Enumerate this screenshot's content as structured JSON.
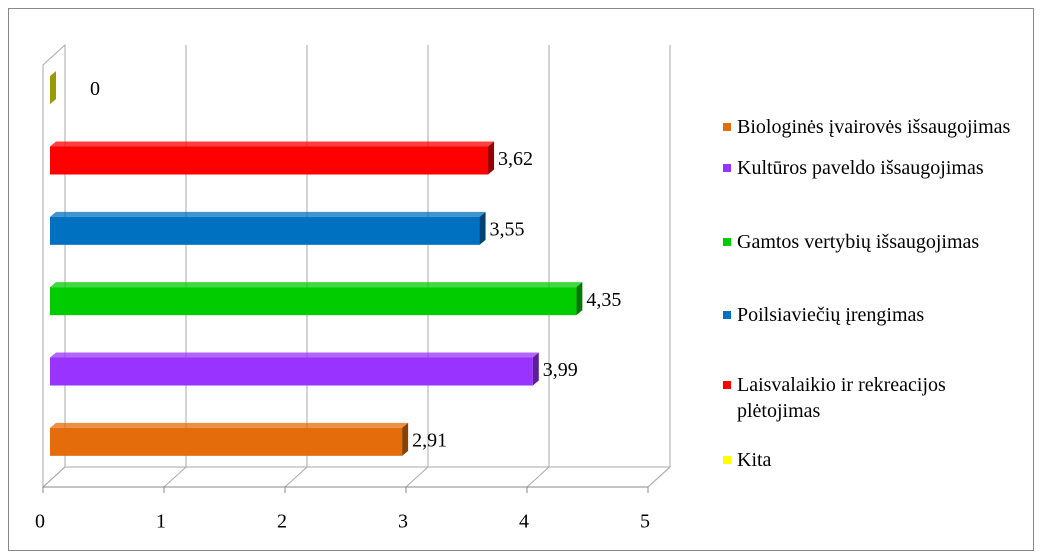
{
  "chart_data": {
    "type": "bar",
    "orientation": "horizontal",
    "categories": [
      "Biologinės įvairovės išsaugojimas",
      "Kultūros paveldo išsaugojimas",
      "Gamtos vertybių išsaugojimas",
      "Poilsiaviečių įrengimas",
      "Laisvalaikio ir rekreacijos plėtojimas",
      "Kita"
    ],
    "values": [
      2.91,
      3.99,
      4.35,
      3.55,
      3.62,
      0
    ],
    "value_labels": [
      "2,91",
      "3,99",
      "4,35",
      "3,55",
      "3,62",
      "0"
    ],
    "colors": [
      "#e46c0a",
      "#9933ff",
      "#00cc00",
      "#0070c0",
      "#ff0000",
      "#ffff00"
    ],
    "xlim": [
      0,
      5
    ],
    "xticks": [
      0,
      1,
      2,
      3,
      4,
      5
    ],
    "grid": true,
    "legend": "right"
  }
}
